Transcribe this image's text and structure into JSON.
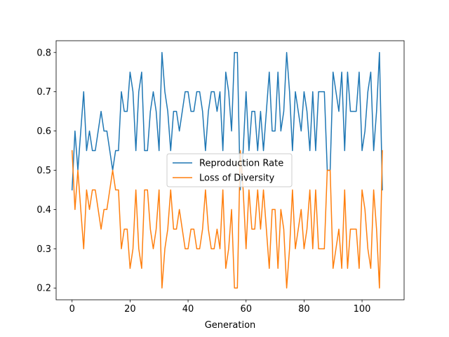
{
  "chart_data": {
    "type": "line",
    "title": "",
    "xlabel": "Generation",
    "ylabel": "",
    "xlim": [
      -5.5,
      114.5
    ],
    "ylim": [
      0.17,
      0.83
    ],
    "xticks": [
      0,
      20,
      40,
      60,
      80,
      100
    ],
    "yticks": [
      0.2,
      0.3,
      0.4,
      0.5,
      0.6,
      0.7,
      0.8
    ],
    "grid": false,
    "legend_position": "center",
    "series": [
      {
        "name": "Reproduction Rate",
        "color": "#1f77b4",
        "values": [
          0.45,
          0.6,
          0.5,
          0.6,
          0.7,
          0.55,
          0.6,
          0.55,
          0.55,
          0.6,
          0.65,
          0.6,
          0.6,
          0.55,
          0.5,
          0.55,
          0.55,
          0.7,
          0.65,
          0.65,
          0.75,
          0.7,
          0.55,
          0.7,
          0.75,
          0.55,
          0.55,
          0.65,
          0.7,
          0.65,
          0.55,
          0.8,
          0.7,
          0.65,
          0.55,
          0.65,
          0.65,
          0.6,
          0.65,
          0.7,
          0.7,
          0.65,
          0.65,
          0.7,
          0.7,
          0.65,
          0.55,
          0.65,
          0.7,
          0.7,
          0.65,
          0.7,
          0.55,
          0.75,
          0.7,
          0.6,
          0.8,
          0.8,
          0.45,
          0.55,
          0.7,
          0.55,
          0.65,
          0.65,
          0.55,
          0.65,
          0.55,
          0.65,
          0.75,
          0.6,
          0.6,
          0.75,
          0.6,
          0.65,
          0.8,
          0.7,
          0.55,
          0.7,
          0.65,
          0.6,
          0.7,
          0.65,
          0.55,
          0.7,
          0.55,
          0.7,
          0.7,
          0.7,
          0.5,
          0.5,
          0.75,
          0.7,
          0.65,
          0.75,
          0.55,
          0.75,
          0.65,
          0.65,
          0.65,
          0.75,
          0.55,
          0.6,
          0.7,
          0.75,
          0.55,
          0.65,
          0.8,
          0.45
        ]
      },
      {
        "name": "Loss of Diversity",
        "color": "#ff7f0e",
        "values": [
          0.55,
          0.4,
          0.5,
          0.4,
          0.3,
          0.45,
          0.4,
          0.45,
          0.45,
          0.4,
          0.35,
          0.4,
          0.4,
          0.45,
          0.5,
          0.45,
          0.45,
          0.3,
          0.35,
          0.35,
          0.25,
          0.3,
          0.45,
          0.3,
          0.25,
          0.45,
          0.45,
          0.35,
          0.3,
          0.35,
          0.45,
          0.2,
          0.3,
          0.35,
          0.45,
          0.35,
          0.35,
          0.4,
          0.35,
          0.3,
          0.3,
          0.35,
          0.35,
          0.3,
          0.3,
          0.35,
          0.45,
          0.35,
          0.3,
          0.3,
          0.35,
          0.3,
          0.45,
          0.25,
          0.3,
          0.4,
          0.2,
          0.2,
          0.55,
          0.45,
          0.3,
          0.45,
          0.35,
          0.35,
          0.45,
          0.35,
          0.45,
          0.35,
          0.25,
          0.4,
          0.4,
          0.25,
          0.4,
          0.35,
          0.2,
          0.3,
          0.45,
          0.3,
          0.35,
          0.4,
          0.3,
          0.35,
          0.45,
          0.3,
          0.45,
          0.3,
          0.3,
          0.3,
          0.5,
          0.5,
          0.25,
          0.3,
          0.35,
          0.25,
          0.45,
          0.25,
          0.35,
          0.35,
          0.35,
          0.25,
          0.45,
          0.4,
          0.3,
          0.25,
          0.45,
          0.35,
          0.2,
          0.55
        ]
      }
    ]
  }
}
